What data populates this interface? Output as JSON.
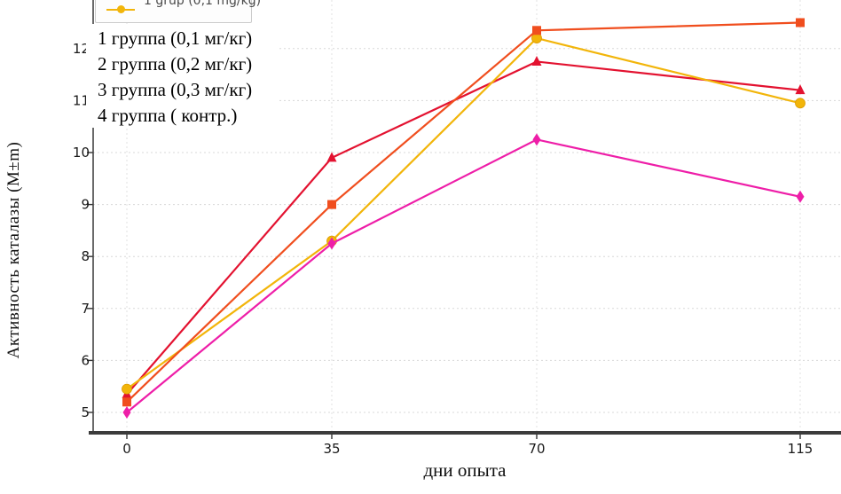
{
  "axes": {
    "y_label": "Активность каталазы (М±m)",
    "x_label": "дни опыта",
    "x_ticks": [
      "0",
      "35",
      "70",
      "115"
    ],
    "y_ticks": [
      "5",
      "6",
      "7",
      "8",
      "9",
      "10",
      "11",
      "12"
    ]
  },
  "legend_box": {
    "entry": "1 grup (0,1 mg/kg)",
    "marker_color": "#f2b50a"
  },
  "legend_overlay": {
    "lines": [
      "1 группа (0,1 мг/кг)",
      "2 группа (0,2 мг/кг)",
      "3 группа (0,3 мг/кг)",
      "4 группа ( контр.)"
    ]
  },
  "chart_data": {
    "type": "line",
    "title": "",
    "x": [
      0,
      35,
      70,
      115
    ],
    "x_tick_labels": [
      "0",
      "35",
      "70",
      "115"
    ],
    "series": [
      {
        "name": "1 группа (0,1 мг/кг)",
        "marker": "circle",
        "color": "#f2b50a",
        "values": [
          5.45,
          8.3,
          12.2,
          10.95
        ]
      },
      {
        "name": "2 группа (0,2 мг/кг)",
        "marker": "square",
        "color": "#f04e1e",
        "values": [
          5.2,
          9.0,
          12.35,
          12.5
        ]
      },
      {
        "name": "3 группа (0,3 мг/кг)",
        "marker": "triangle",
        "color": "#e31230",
        "values": [
          5.35,
          9.9,
          11.75,
          11.2
        ]
      },
      {
        "name": "4 группа ( контр.)",
        "marker": "diamond",
        "color": "#ee1ea8",
        "values": [
          5.0,
          8.25,
          10.25,
          9.15
        ]
      }
    ],
    "xlabel": "дни опыта",
    "ylabel": "Активность каталазы (М±m)",
    "ylim": [
      4.6,
      13.0
    ],
    "xlim": [
      -6,
      122
    ],
    "grid": true,
    "gridline_color": "#d8d8d8",
    "axis_color": "#3b3b3b",
    "legend_position": "top-left, clipped at image top"
  }
}
